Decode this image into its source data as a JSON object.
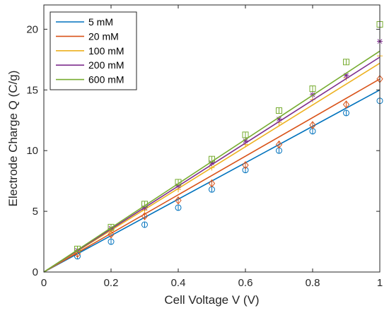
{
  "chart_data": {
    "type": "line",
    "xlabel": "Cell Voltage V (V)",
    "ylabel": "Electrode Charge Q (C/g)",
    "xlim": [
      0,
      1
    ],
    "ylim": [
      0,
      22
    ],
    "xticks": [
      0,
      0.2,
      0.4,
      0.6,
      0.8,
      1
    ],
    "xtick_labels": [
      "0",
      "0.2",
      "0.4",
      "0.6",
      "0.8",
      "1"
    ],
    "yticks": [
      0,
      5,
      10,
      15,
      20
    ],
    "ytick_labels": [
      "0",
      "5",
      "10",
      "15",
      "20"
    ],
    "grid": false,
    "legend_position": "top-left",
    "series": [
      {
        "name": "5 mM",
        "color": "#0072BD",
        "marker": "circle",
        "line": [
          [
            0,
            0
          ],
          [
            1,
            15.0
          ]
        ],
        "points": {
          "x": [
            0.1,
            0.2,
            0.3,
            0.4,
            0.5,
            0.6,
            0.7,
            0.8,
            0.9,
            1.0
          ],
          "y": [
            1.3,
            2.5,
            3.9,
            5.3,
            6.8,
            8.4,
            10.0,
            11.6,
            13.1,
            14.1
          ]
        }
      },
      {
        "name": "20 mM",
        "color": "#D95319",
        "marker": "diamond",
        "line": [
          [
            0,
            0
          ],
          [
            1,
            15.9
          ]
        ],
        "points": {
          "x": [
            0.1,
            0.2,
            0.3,
            0.4,
            0.5,
            0.6,
            0.7,
            0.8,
            0.9,
            1.0
          ],
          "y": [
            1.5,
            3.1,
            4.6,
            5.9,
            7.3,
            8.8,
            10.5,
            12.1,
            13.8,
            15.9
          ]
        }
      },
      {
        "name": "100 mM",
        "color": "#EDB120",
        "marker": "plus",
        "line": [
          [
            0,
            0
          ],
          [
            1,
            17.2
          ]
        ],
        "points": {
          "x": [
            0.1,
            0.2,
            0.3,
            0.4,
            0.5,
            0.6,
            0.7,
            0.8,
            0.9,
            1.0
          ],
          "y": [
            1.7,
            3.4,
            5.1,
            6.8,
            8.6,
            10.5,
            12.3,
            14.2,
            16.0,
            17.8
          ]
        }
      },
      {
        "name": "200 mM",
        "color": "#7E2F8E",
        "marker": "asterisk",
        "line": [
          [
            0,
            0
          ],
          [
            1,
            17.7
          ]
        ],
        "points": {
          "x": [
            0.1,
            0.2,
            0.3,
            0.4,
            0.5,
            0.6,
            0.7,
            0.8,
            0.9,
            1.0
          ],
          "y": [
            1.8,
            3.6,
            5.3,
            7.1,
            9.0,
            10.8,
            12.6,
            14.6,
            16.2,
            19.0
          ]
        }
      },
      {
        "name": "600 mM",
        "color": "#77AC30",
        "marker": "square",
        "line": [
          [
            0,
            0
          ],
          [
            1,
            18.2
          ]
        ],
        "points": {
          "x": [
            0.1,
            0.2,
            0.3,
            0.4,
            0.5,
            0.6,
            0.7,
            0.8,
            0.9,
            1.0
          ],
          "y": [
            1.9,
            3.7,
            5.6,
            7.4,
            9.3,
            11.3,
            13.3,
            15.1,
            17.3,
            20.4
          ]
        }
      }
    ]
  }
}
